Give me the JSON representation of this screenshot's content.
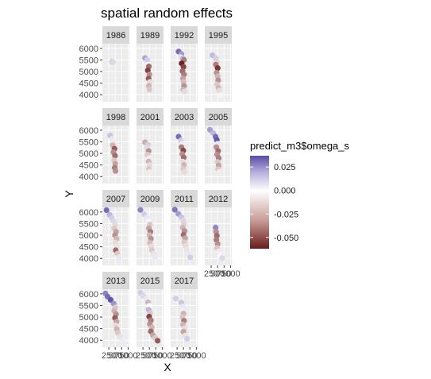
{
  "chart_data": {
    "type": "scatter",
    "title": "spatial random effects",
    "xlabel": "X",
    "ylabel": "Y",
    "facet_variable": "year",
    "ylim": [
      3700,
      6200
    ],
    "xlim": [
      0,
      1050
    ],
    "y_ticks": [
      4000,
      4500,
      5000,
      5500,
      6000
    ],
    "y_tick_labels": [
      "4000",
      "4500",
      "5000",
      "5500",
      "6000"
    ],
    "x_ticks": [
      250,
      500,
      750,
      1000
    ],
    "x_tick_labels": [
      "250",
      "500",
      "750",
      "1000"
    ],
    "x_tick_text_overlapping": "2̶5̶0̶500̶750̶1000",
    "grid": true,
    "legend": {
      "title": "predict_m3$omega_s",
      "position": "right",
      "breaks": [
        0.025,
        0.0,
        -0.025,
        -0.05
      ],
      "break_labels": [
        "0.025",
        "0.000",
        "-0.025",
        "-0.050"
      ],
      "limits": [
        -0.062,
        0.037
      ],
      "low_color": "#6b1b1b",
      "mid_color": "#ffffff",
      "high_color": "#5a4aa6"
    },
    "facets": [
      {
        "label": "1986",
        "points": [
          {
            "x": 380,
            "y": 5420,
            "v": 0.012
          },
          {
            "x": 410,
            "y": 5400,
            "v": 0.008
          }
        ]
      },
      {
        "label": "1989",
        "points": [
          {
            "x": 330,
            "y": 5580,
            "v": 0.018
          },
          {
            "x": 420,
            "y": 5500,
            "v": 0.01
          },
          {
            "x": 450,
            "y": 5300,
            "v": 0.002
          },
          {
            "x": 480,
            "y": 5220,
            "v": -0.04
          },
          {
            "x": 440,
            "y": 5050,
            "v": -0.052
          },
          {
            "x": 500,
            "y": 4870,
            "v": -0.03
          },
          {
            "x": 470,
            "y": 4700,
            "v": -0.045
          },
          {
            "x": 520,
            "y": 4550,
            "v": -0.01
          },
          {
            "x": 480,
            "y": 4380,
            "v": -0.02
          },
          {
            "x": 500,
            "y": 4220,
            "v": -0.015
          }
        ]
      },
      {
        "label": "1992",
        "points": [
          {
            "x": 310,
            "y": 5860,
            "v": 0.03
          },
          {
            "x": 420,
            "y": 5760,
            "v": 0.02
          },
          {
            "x": 380,
            "y": 5620,
            "v": 0.005
          },
          {
            "x": 470,
            "y": 5560,
            "v": 0.015
          },
          {
            "x": 520,
            "y": 5500,
            "v": -0.035
          },
          {
            "x": 430,
            "y": 5350,
            "v": -0.06
          },
          {
            "x": 500,
            "y": 5200,
            "v": -0.05
          },
          {
            "x": 460,
            "y": 5020,
            "v": -0.04
          },
          {
            "x": 520,
            "y": 4870,
            "v": -0.035
          },
          {
            "x": 480,
            "y": 4700,
            "v": -0.025
          },
          {
            "x": 500,
            "y": 4550,
            "v": -0.018
          },
          {
            "x": 520,
            "y": 4380,
            "v": -0.03
          },
          {
            "x": 490,
            "y": 4220,
            "v": -0.02
          },
          {
            "x": 530,
            "y": 4140,
            "v": -0.01
          }
        ]
      },
      {
        "label": "1995",
        "points": [
          {
            "x": 300,
            "y": 5700,
            "v": 0.014
          },
          {
            "x": 420,
            "y": 5580,
            "v": 0.01
          },
          {
            "x": 470,
            "y": 5420,
            "v": -0.012
          },
          {
            "x": 430,
            "y": 5300,
            "v": -0.035
          },
          {
            "x": 500,
            "y": 5150,
            "v": -0.055
          },
          {
            "x": 460,
            "y": 4950,
            "v": -0.03
          },
          {
            "x": 500,
            "y": 4800,
            "v": -0.02
          },
          {
            "x": 520,
            "y": 4620,
            "v": -0.03
          },
          {
            "x": 480,
            "y": 4450,
            "v": -0.015
          },
          {
            "x": 530,
            "y": 4300,
            "v": -0.02
          },
          {
            "x": 560,
            "y": 4180,
            "v": -0.01
          },
          {
            "x": 620,
            "y": 3980,
            "v": 0.002
          }
        ]
      },
      {
        "label": "1998",
        "points": [
          {
            "x": 300,
            "y": 5780,
            "v": 0.012
          },
          {
            "x": 380,
            "y": 5620,
            "v": 0.005
          },
          {
            "x": 440,
            "y": 5500,
            "v": -0.005
          },
          {
            "x": 400,
            "y": 5350,
            "v": -0.02
          },
          {
            "x": 470,
            "y": 5200,
            "v": -0.045
          },
          {
            "x": 430,
            "y": 5050,
            "v": -0.03
          },
          {
            "x": 490,
            "y": 4900,
            "v": -0.04
          },
          {
            "x": 460,
            "y": 4700,
            "v": -0.015
          },
          {
            "x": 500,
            "y": 4550,
            "v": -0.025
          },
          {
            "x": 480,
            "y": 4380,
            "v": -0.035
          },
          {
            "x": 510,
            "y": 4240,
            "v": -0.03
          }
        ]
      },
      {
        "label": "2001",
        "points": [
          {
            "x": 330,
            "y": 5480,
            "v": -0.022
          },
          {
            "x": 440,
            "y": 5380,
            "v": 0.01
          },
          {
            "x": 400,
            "y": 5230,
            "v": -0.01
          },
          {
            "x": 470,
            "y": 5100,
            "v": -0.03
          },
          {
            "x": 430,
            "y": 4950,
            "v": -0.015
          },
          {
            "x": 500,
            "y": 4800,
            "v": -0.005
          },
          {
            "x": 470,
            "y": 4650,
            "v": -0.02
          },
          {
            "x": 510,
            "y": 4500,
            "v": -0.01
          },
          {
            "x": 480,
            "y": 4330,
            "v": -0.015
          },
          {
            "x": 520,
            "y": 4200,
            "v": -0.005
          }
        ]
      },
      {
        "label": "2003",
        "points": [
          {
            "x": 310,
            "y": 5720,
            "v": 0.03
          },
          {
            "x": 400,
            "y": 5560,
            "v": 0.01
          },
          {
            "x": 460,
            "y": 5420,
            "v": -0.005
          },
          {
            "x": 420,
            "y": 5270,
            "v": -0.035
          },
          {
            "x": 490,
            "y": 5120,
            "v": -0.05
          },
          {
            "x": 450,
            "y": 4970,
            "v": -0.03
          },
          {
            "x": 510,
            "y": 4820,
            "v": -0.04
          },
          {
            "x": 470,
            "y": 4650,
            "v": -0.01
          },
          {
            "x": 520,
            "y": 4500,
            "v": -0.02
          },
          {
            "x": 490,
            "y": 4330,
            "v": -0.015
          },
          {
            "x": 530,
            "y": 4200,
            "v": -0.01
          }
        ]
      },
      {
        "label": "2005",
        "points": [
          {
            "x": 200,
            "y": 6020,
            "v": 0.02
          },
          {
            "x": 320,
            "y": 5880,
            "v": 0.015
          },
          {
            "x": 420,
            "y": 5720,
            "v": 0.03
          },
          {
            "x": 470,
            "y": 5580,
            "v": 0.035
          },
          {
            "x": 500,
            "y": 5420,
            "v": 0.005
          },
          {
            "x": 450,
            "y": 5270,
            "v": -0.03
          },
          {
            "x": 520,
            "y": 5100,
            "v": -0.04
          },
          {
            "x": 480,
            "y": 4950,
            "v": -0.03
          },
          {
            "x": 540,
            "y": 4800,
            "v": -0.035
          },
          {
            "x": 500,
            "y": 4630,
            "v": -0.015
          },
          {
            "x": 540,
            "y": 4480,
            "v": -0.025
          },
          {
            "x": 520,
            "y": 4320,
            "v": -0.015
          },
          {
            "x": 560,
            "y": 4200,
            "v": -0.005
          }
        ]
      },
      {
        "label": "2007",
        "points": [
          {
            "x": 160,
            "y": 6080,
            "v": 0.03
          },
          {
            "x": 280,
            "y": 5880,
            "v": 0.015
          },
          {
            "x": 360,
            "y": 5740,
            "v": 0.01
          },
          {
            "x": 440,
            "y": 5600,
            "v": 0.008
          },
          {
            "x": 500,
            "y": 5450,
            "v": -0.01
          },
          {
            "x": 460,
            "y": 5300,
            "v": -0.015
          },
          {
            "x": 530,
            "y": 5150,
            "v": -0.025
          },
          {
            "x": 490,
            "y": 5000,
            "v": -0.03
          },
          {
            "x": 550,
            "y": 4850,
            "v": -0.02
          },
          {
            "x": 510,
            "y": 4680,
            "v": -0.01
          },
          {
            "x": 560,
            "y": 4520,
            "v": -0.008
          },
          {
            "x": 520,
            "y": 4350,
            "v": -0.04
          },
          {
            "x": 580,
            "y": 4200,
            "v": -0.015
          },
          {
            "x": 640,
            "y": 4050,
            "v": 0.005
          }
        ]
      },
      {
        "label": "2009",
        "points": [
          {
            "x": 150,
            "y": 6090,
            "v": 0.025
          },
          {
            "x": 300,
            "y": 5900,
            "v": 0.01
          },
          {
            "x": 400,
            "y": 5760,
            "v": 0.005
          },
          {
            "x": 470,
            "y": 5610,
            "v": 0.002
          },
          {
            "x": 520,
            "y": 5460,
            "v": -0.015
          },
          {
            "x": 480,
            "y": 5300,
            "v": -0.025
          },
          {
            "x": 540,
            "y": 5150,
            "v": -0.035
          },
          {
            "x": 500,
            "y": 5000,
            "v": -0.02
          },
          {
            "x": 560,
            "y": 4850,
            "v": -0.03
          },
          {
            "x": 520,
            "y": 4680,
            "v": -0.018
          },
          {
            "x": 570,
            "y": 4520,
            "v": -0.01
          },
          {
            "x": 600,
            "y": 4350,
            "v": -0.015
          },
          {
            "x": 660,
            "y": 4200,
            "v": -0.008
          },
          {
            "x": 720,
            "y": 4080,
            "v": 0.005
          }
        ]
      },
      {
        "label": "2011",
        "points": [
          {
            "x": 160,
            "y": 6100,
            "v": 0.028
          },
          {
            "x": 300,
            "y": 5920,
            "v": 0.02
          },
          {
            "x": 420,
            "y": 5780,
            "v": 0.012
          },
          {
            "x": 490,
            "y": 5640,
            "v": 0.008
          },
          {
            "x": 520,
            "y": 5490,
            "v": -0.012
          },
          {
            "x": 470,
            "y": 5330,
            "v": -0.02
          },
          {
            "x": 540,
            "y": 5180,
            "v": -0.03
          },
          {
            "x": 500,
            "y": 5020,
            "v": -0.04
          },
          {
            "x": 560,
            "y": 4870,
            "v": -0.025
          },
          {
            "x": 530,
            "y": 4700,
            "v": -0.015
          },
          {
            "x": 580,
            "y": 4540,
            "v": -0.01
          },
          {
            "x": 620,
            "y": 4380,
            "v": -0.008
          },
          {
            "x": 680,
            "y": 4200,
            "v": 0.005
          },
          {
            "x": 760,
            "y": 4050,
            "v": 0.01
          }
        ]
      },
      {
        "label": "2012",
        "points": [
          {
            "x": 420,
            "y": 5330,
            "v": 0.025
          },
          {
            "x": 440,
            "y": 5150,
            "v": -0.03
          },
          {
            "x": 470,
            "y": 4980,
            "v": -0.04
          },
          {
            "x": 450,
            "y": 4800,
            "v": -0.035
          },
          {
            "x": 500,
            "y": 4620,
            "v": -0.03
          },
          {
            "x": 480,
            "y": 4450,
            "v": -0.015
          },
          {
            "x": 540,
            "y": 4300,
            "v": -0.005
          },
          {
            "x": 600,
            "y": 4150,
            "v": 0.002
          },
          {
            "x": 680,
            "y": 4020,
            "v": 0.008
          }
        ]
      },
      {
        "label": "2013",
        "points": [
          {
            "x": 120,
            "y": 6020,
            "v": 0.025
          },
          {
            "x": 200,
            "y": 5880,
            "v": 0.03
          },
          {
            "x": 320,
            "y": 5740,
            "v": 0.035
          },
          {
            "x": 440,
            "y": 5580,
            "v": 0.022
          },
          {
            "x": 500,
            "y": 5420,
            "v": -0.015
          },
          {
            "x": 460,
            "y": 5270,
            "v": -0.02
          },
          {
            "x": 530,
            "y": 5120,
            "v": -0.03
          },
          {
            "x": 490,
            "y": 4960,
            "v": -0.045
          },
          {
            "x": 550,
            "y": 4800,
            "v": -0.025
          },
          {
            "x": 510,
            "y": 4640,
            "v": -0.01
          },
          {
            "x": 560,
            "y": 4480,
            "v": -0.02
          },
          {
            "x": 600,
            "y": 4320,
            "v": -0.015
          },
          {
            "x": 680,
            "y": 4160,
            "v": -0.008
          },
          {
            "x": 780,
            "y": 4000,
            "v": 0.004
          }
        ]
      },
      {
        "label": "2015",
        "points": [
          {
            "x": 150,
            "y": 6050,
            "v": 0.01
          },
          {
            "x": 260,
            "y": 5920,
            "v": 0.008
          },
          {
            "x": 380,
            "y": 5780,
            "v": 0.005
          },
          {
            "x": 450,
            "y": 5630,
            "v": -0.02
          },
          {
            "x": 500,
            "y": 5480,
            "v": 0.0
          },
          {
            "x": 470,
            "y": 5320,
            "v": 0.015
          },
          {
            "x": 530,
            "y": 5170,
            "v": -0.015
          },
          {
            "x": 490,
            "y": 5020,
            "v": -0.05
          },
          {
            "x": 560,
            "y": 4860,
            "v": -0.035
          },
          {
            "x": 520,
            "y": 4700,
            "v": -0.03
          },
          {
            "x": 590,
            "y": 4550,
            "v": -0.02
          },
          {
            "x": 560,
            "y": 4380,
            "v": -0.04
          },
          {
            "x": 640,
            "y": 4220,
            "v": -0.025
          },
          {
            "x": 720,
            "y": 4100,
            "v": -0.015
          },
          {
            "x": 820,
            "y": 3980,
            "v": -0.045
          }
        ]
      },
      {
        "label": "2017",
        "points": [
          {
            "x": 200,
            "y": 5800,
            "v": 0.01
          },
          {
            "x": 420,
            "y": 5620,
            "v": 0.012
          },
          {
            "x": 470,
            "y": 5460,
            "v": 0.005
          },
          {
            "x": 440,
            "y": 5300,
            "v": -0.005
          },
          {
            "x": 500,
            "y": 5150,
            "v": -0.02
          },
          {
            "x": 460,
            "y": 4990,
            "v": -0.015
          },
          {
            "x": 520,
            "y": 4840,
            "v": -0.035
          },
          {
            "x": 480,
            "y": 4680,
            "v": -0.02
          },
          {
            "x": 540,
            "y": 4520,
            "v": -0.01
          },
          {
            "x": 500,
            "y": 4360,
            "v": -0.025
          },
          {
            "x": 560,
            "y": 4200,
            "v": -0.008
          },
          {
            "x": 640,
            "y": 4060,
            "v": 0.01
          }
        ]
      }
    ]
  }
}
